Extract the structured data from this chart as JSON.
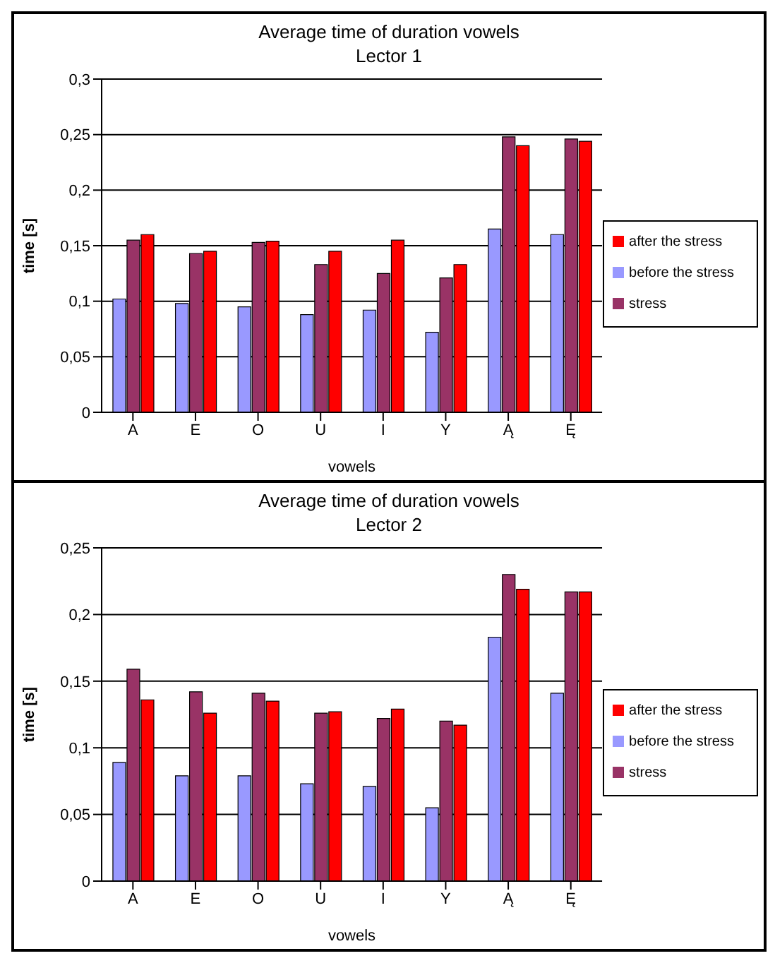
{
  "chart_data": [
    {
      "type": "bar",
      "title": "Average time of duration vowels",
      "subtitle": "Lector 1",
      "xlabel": "vowels",
      "ylabel": "time [s]",
      "categories": [
        "A",
        "E",
        "O",
        "U",
        "I",
        "Y",
        "Ą",
        "Ę"
      ],
      "series": [
        {
          "name": "before the stress",
          "color": "#9999ff",
          "values": [
            0.102,
            0.098,
            0.095,
            0.088,
            0.092,
            0.072,
            0.165,
            0.16
          ]
        },
        {
          "name": "stress",
          "color": "#993366",
          "values": [
            0.155,
            0.143,
            0.153,
            0.133,
            0.125,
            0.121,
            0.248,
            0.246
          ]
        },
        {
          "name": "after the stress",
          "color": "#ff0000",
          "values": [
            0.16,
            0.145,
            0.154,
            0.145,
            0.155,
            0.133,
            0.24,
            0.244
          ]
        }
      ],
      "ylim": [
        0,
        0.3
      ],
      "yticks": [
        0,
        {
          "value": 0.05,
          "label": "0,05"
        },
        {
          "value": 0.1,
          "label": "0,1"
        },
        {
          "value": 0.15,
          "label": "0,15"
        },
        {
          "value": 0.2,
          "label": "0,2"
        },
        {
          "value": 0.25,
          "label": "0,25"
        },
        {
          "value": 0.3,
          "label": "0,3"
        }
      ],
      "grid": "y",
      "legend": "right"
    },
    {
      "type": "bar",
      "title": "Average time of duration vowels",
      "subtitle": "Lector 2",
      "xlabel": "vowels",
      "ylabel": "time [s]",
      "categories": [
        "A",
        "E",
        "O",
        "U",
        "I",
        "Y",
        "Ą",
        "Ę"
      ],
      "series": [
        {
          "name": "before the stress",
          "color": "#9999ff",
          "values": [
            0.089,
            0.079,
            0.079,
            0.073,
            0.071,
            0.055,
            0.183,
            0.141
          ]
        },
        {
          "name": "stress",
          "color": "#993366",
          "values": [
            0.159,
            0.142,
            0.141,
            0.126,
            0.122,
            0.12,
            0.23,
            0.217
          ]
        },
        {
          "name": "after the stress",
          "color": "#ff0000",
          "values": [
            0.136,
            0.126,
            0.135,
            0.127,
            0.129,
            0.117,
            0.219,
            0.217
          ]
        }
      ],
      "ylim": [
        0,
        0.25
      ],
      "yticks": [
        0,
        {
          "value": 0.05,
          "label": "0,05"
        },
        {
          "value": 0.1,
          "label": "0,1"
        },
        {
          "value": 0.15,
          "label": "0,15"
        },
        {
          "value": 0.2,
          "label": "0,2"
        },
        {
          "value": 0.25,
          "label": "0,25"
        }
      ],
      "grid": "y",
      "legend": "right"
    }
  ]
}
